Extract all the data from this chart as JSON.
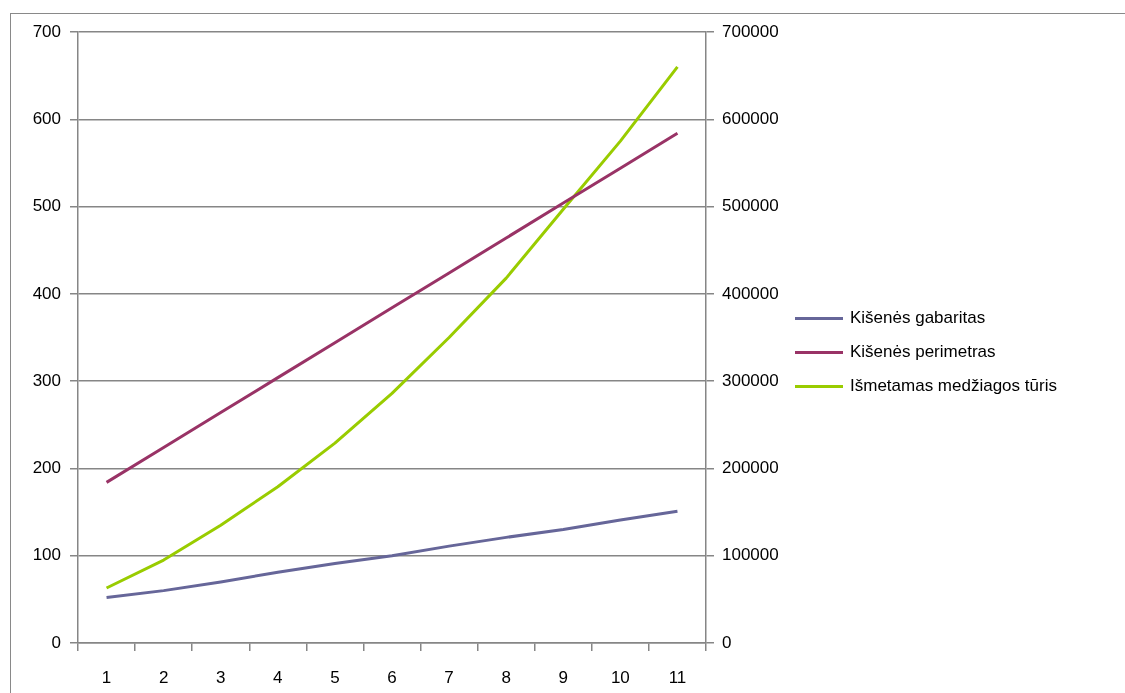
{
  "chart_data": {
    "type": "line",
    "categories": [
      "1",
      "2",
      "3",
      "4",
      "5",
      "6",
      "7",
      "8",
      "9",
      "10",
      "11"
    ],
    "series": [
      {
        "name": "Kišenės gabaritas",
        "color": "#666699",
        "values": [
          52,
          60,
          70,
          81,
          91,
          100,
          111,
          121,
          130,
          141,
          151
        ]
      },
      {
        "name": "Kišenės perimetras",
        "color": "#993366",
        "values": [
          184,
          224,
          264,
          304,
          344,
          384,
          424,
          464,
          504,
          544,
          584
        ]
      },
      {
        "name": "Išmetamas medžiagos tūris",
        "color": "#99cc00",
        "axis": "y2",
        "values": [
          63000,
          95000,
          135000,
          179000,
          229000,
          286000,
          350000,
          418000,
          497000,
          575000,
          660000
        ]
      }
    ],
    "ylim": [
      0,
      700
    ],
    "yticks": [
      0,
      100,
      200,
      300,
      400,
      500,
      600,
      700
    ],
    "y2lim": [
      0,
      700000
    ],
    "y2ticks": [
      0,
      100000,
      200000,
      300000,
      400000,
      500000,
      600000,
      700000
    ],
    "grid": "y",
    "legend": "right"
  }
}
